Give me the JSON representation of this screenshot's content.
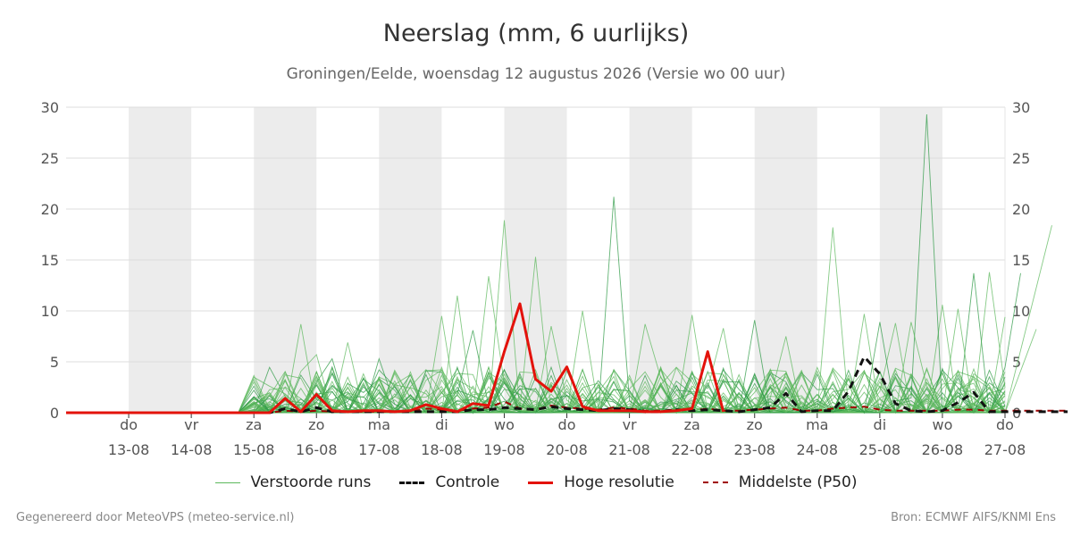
{
  "header": {
    "title": "Neerslag (mm, 6 uurlijks)",
    "subtitle": "Groningen/Eelde, woensdag 12 augustus 2026 (Versie wo 00 uur)"
  },
  "footer": {
    "left": "Gegenereerd door MeteoVPS (meteo-service.nl)",
    "right": "Bron: ECMWF AIFS/KNMI Ens"
  },
  "legend": [
    {
      "label": "Verstoorde runs",
      "color": "#5cb85c",
      "style": "thin"
    },
    {
      "label": "Controle",
      "color": "#111111",
      "style": "dashed"
    },
    {
      "label": "Hoge resolutie",
      "color": "#e3120b",
      "style": "solid"
    },
    {
      "label": "Middelste (P50)",
      "color": "#a00000",
      "style": "dashed"
    }
  ],
  "chart_data": {
    "type": "line",
    "ylim": [
      0,
      30
    ],
    "y_ticks": [
      0,
      5,
      10,
      15,
      20,
      25,
      30
    ],
    "grid": true,
    "legend_position": "bottom",
    "x_start": "2026-08-12 00:00",
    "x_end": "2026-08-27 00:00",
    "step_hours": 6,
    "x_ticks": [
      {
        "day": "do",
        "date": "13-08"
      },
      {
        "day": "vr",
        "date": "14-08"
      },
      {
        "day": "za",
        "date": "15-08"
      },
      {
        "day": "zo",
        "date": "16-08"
      },
      {
        "day": "ma",
        "date": "17-08"
      },
      {
        "day": "di",
        "date": "18-08"
      },
      {
        "day": "wo",
        "date": "19-08"
      },
      {
        "day": "do",
        "date": "20-08"
      },
      {
        "day": "vr",
        "date": "21-08"
      },
      {
        "day": "za",
        "date": "22-08"
      },
      {
        "day": "zo",
        "date": "23-08"
      },
      {
        "day": "ma",
        "date": "24-08"
      },
      {
        "day": "di",
        "date": "25-08"
      },
      {
        "day": "wo",
        "date": "26-08"
      },
      {
        "day": "do",
        "date": "27-08"
      }
    ],
    "shaded_days": [
      "13-08",
      "15-08",
      "17-08",
      "19-08",
      "21-08",
      "23-08",
      "25-08"
    ],
    "series": [
      {
        "name": "Hoge resolutie",
        "color": "#e3120b",
        "values": [
          0,
          0,
          0,
          0,
          0,
          0,
          0,
          0,
          0,
          0,
          0,
          0,
          0,
          0,
          1.4,
          0.1,
          1.8,
          0.2,
          0.1,
          0.2,
          0.2,
          0.1,
          0.2,
          0.8,
          0.4,
          0.1,
          0.9,
          0.7,
          6.0,
          10.7,
          3.3,
          2.1,
          4.5,
          0.6,
          0.2,
          0.2,
          0.2,
          0.1,
          0.1,
          0.2,
          0.4,
          6.0,
          0.1,
          null
        ]
      },
      {
        "name": "Controle",
        "color": "#111111",
        "values": [
          0,
          0,
          0,
          0,
          0,
          0,
          0,
          0,
          0,
          0,
          0,
          0,
          0,
          0,
          0.4,
          0.1,
          0.5,
          0.1,
          0.1,
          0.1,
          0.1,
          0.1,
          0.1,
          0.1,
          0.1,
          0.1,
          0.3,
          0.3,
          0.5,
          0.4,
          0.3,
          0.6,
          0.4,
          0.3,
          0.2,
          0.4,
          0.3,
          0.1,
          0.1,
          0.3,
          0.2,
          0.3,
          0.2,
          0.1,
          0.3,
          0.5,
          1.9,
          0.1,
          0.2,
          0.2,
          2.1,
          5.5,
          3.8,
          0.9,
          0.2,
          0.1,
          0.2,
          1.0,
          2.0,
          0.1,
          0.1,
          0.1,
          0.1,
          0.1,
          0.1
        ]
      },
      {
        "name": "Middelste (P50)",
        "color": "#a00000",
        "values": [
          0,
          0,
          0,
          0,
          0,
          0,
          0,
          0,
          0,
          0,
          0,
          0,
          0,
          0,
          0.2,
          0.1,
          0.2,
          0.1,
          0.1,
          0.1,
          0.1,
          0.1,
          0.1,
          0.4,
          0.3,
          0.2,
          0.4,
          0.5,
          1.1,
          0.4,
          0.3,
          0.7,
          0.5,
          0.4,
          0.3,
          0.5,
          0.4,
          0.2,
          0.2,
          0.3,
          0.2,
          0.4,
          0.2,
          0.2,
          0.3,
          0.4,
          0.5,
          0.2,
          0.2,
          0.4,
          0.5,
          0.6,
          0.3,
          0.2,
          0.2,
          0.2,
          0.2,
          0.3,
          0.3,
          0.2,
          0.2,
          0.2,
          0.2,
          0.2,
          0.2
        ]
      }
    ],
    "ensemble_spikes": [
      {
        "date": "2026-08-15 18:00",
        "value": 8.7
      },
      {
        "date": "2026-08-16 00:00",
        "value": 5.7
      },
      {
        "date": "2026-08-16 06:00",
        "value": 5.3
      },
      {
        "date": "2026-08-16 12:00",
        "value": 6.9
      },
      {
        "date": "2026-08-17 00:00",
        "value": 5.3
      },
      {
        "date": "2026-08-17 12:00",
        "value": 4.0
      },
      {
        "date": "2026-08-18 00:00",
        "value": 9.5
      },
      {
        "date": "2026-08-18 06:00",
        "value": 11.5
      },
      {
        "date": "2026-08-18 12:00",
        "value": 8.1
      },
      {
        "date": "2026-08-18 18:00",
        "value": 13.4
      },
      {
        "date": "2026-08-19 00:00",
        "value": 18.9
      },
      {
        "date": "2026-08-19 12:00",
        "value": 15.3
      },
      {
        "date": "2026-08-19 18:00",
        "value": 8.5
      },
      {
        "date": "2026-08-20 06:00",
        "value": 10.0
      },
      {
        "date": "2026-08-20 18:00",
        "value": 21.2
      },
      {
        "date": "2026-08-21 06:00",
        "value": 8.7
      },
      {
        "date": "2026-08-22 00:00",
        "value": 9.6
      },
      {
        "date": "2026-08-22 12:00",
        "value": 8.3
      },
      {
        "date": "2026-08-23 00:00",
        "value": 9.1
      },
      {
        "date": "2026-08-23 12:00",
        "value": 7.5
      },
      {
        "date": "2026-08-24 06:00",
        "value": 18.2
      },
      {
        "date": "2026-08-24 18:00",
        "value": 9.7
      },
      {
        "date": "2026-08-25 00:00",
        "value": 8.9
      },
      {
        "date": "2026-08-25 06:00",
        "value": 8.8
      },
      {
        "date": "2026-08-25 12:00",
        "value": 8.9
      },
      {
        "date": "2026-08-25 18:00",
        "value": 29.3
      },
      {
        "date": "2026-08-26 00:00",
        "value": 10.6
      },
      {
        "date": "2026-08-26 06:00",
        "value": 10.2
      },
      {
        "date": "2026-08-26 12:00",
        "value": 13.7
      },
      {
        "date": "2026-08-26 18:00",
        "value": 13.8
      },
      {
        "date": "2026-08-27 00:00",
        "value": 9.4
      },
      {
        "date": "2026-08-27 06:00",
        "value": 13.7
      },
      {
        "date": "2026-08-27 12:00",
        "value": 8.2
      },
      {
        "date": "2026-08-27 18:00",
        "value": 18.4
      }
    ]
  }
}
